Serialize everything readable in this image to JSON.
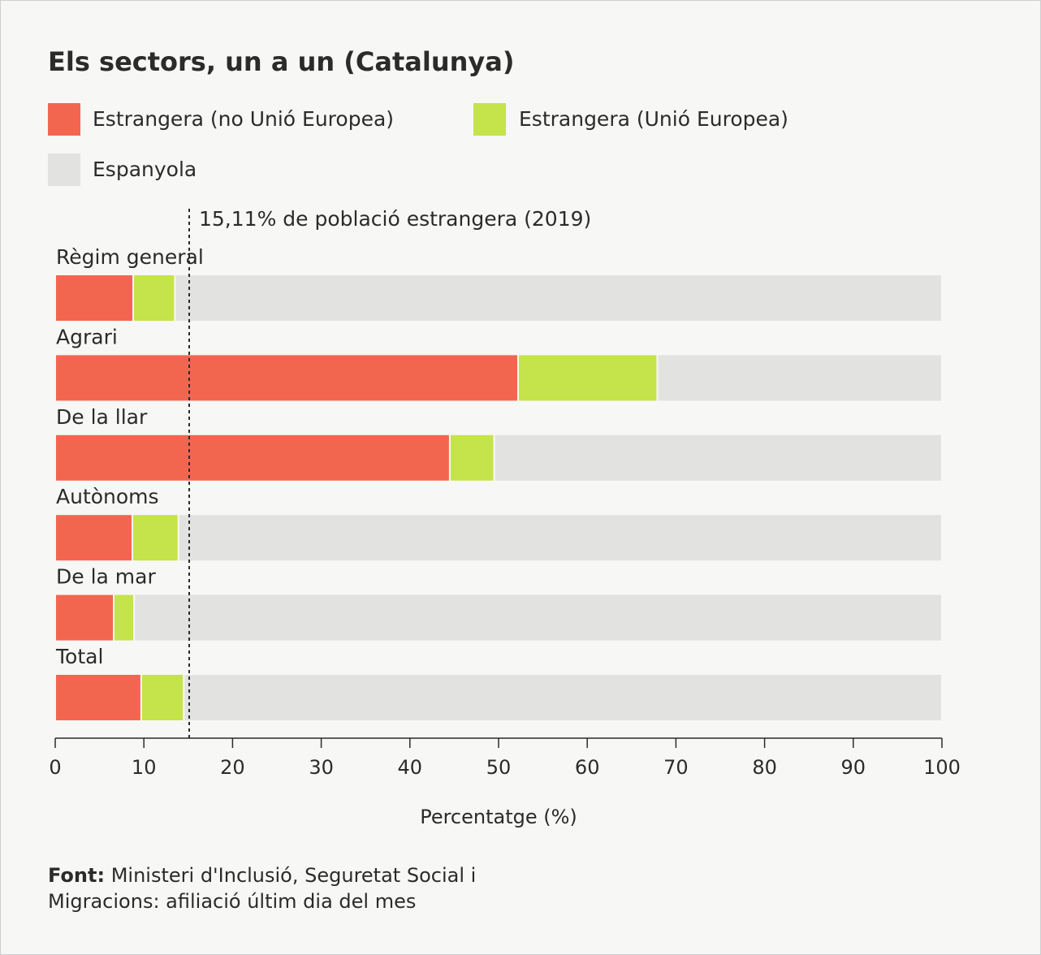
{
  "chart_data": {
    "type": "stacked_bar_horizontal",
    "title": "Els sectors, un a un (Catalunya)",
    "categories": [
      "Règim general",
      "Agrari",
      "De la llar",
      "Autònoms",
      "De la mar",
      "Total"
    ],
    "series": [
      {
        "name": "Estrangera (no Unió Europea)",
        "color": "#f26650",
        "values": [
          8.8,
          52.2,
          44.5,
          8.7,
          6.6,
          9.7
        ]
      },
      {
        "name": "Estrangera (Unió Europea)",
        "color": "#c5e34a",
        "values": [
          4.7,
          15.7,
          5.0,
          5.2,
          2.3,
          4.8
        ]
      },
      {
        "name": "Espanyola",
        "color": "#e2e2e0",
        "values": [
          86.5,
          32.1,
          50.5,
          86.1,
          91.1,
          85.5
        ]
      }
    ],
    "xlim": [
      0,
      100
    ],
    "xticks": [
      0,
      10,
      20,
      30,
      40,
      50,
      60,
      70,
      80,
      90,
      100
    ],
    "xlabel": "Percentatge (%)",
    "reference_line": {
      "value": 15.11,
      "label": "15,11% de població estrangera (2019)"
    },
    "source_label": "Font:",
    "source": "Ministeri d'Inclusió, Seguretat Social i Migracions: afiliació últim dia del mes"
  }
}
